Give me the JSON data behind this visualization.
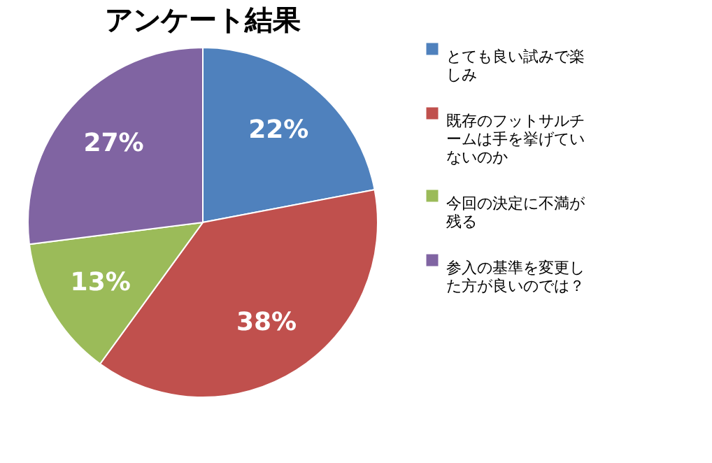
{
  "chart_data": {
    "type": "pie",
    "title": "アンケート結果",
    "categories": [
      "とても良い試みで楽しみ",
      "既存のフットサルチームは手を挙げていないのか",
      "今回の決定に不満が残る",
      "参入の基準を変更した方が良いのでは？"
    ],
    "values": [
      22,
      38,
      13,
      27
    ],
    "colors": [
      "#4f81bd",
      "#c0504d",
      "#9bbb59",
      "#8064a2"
    ],
    "value_labels": [
      "22%",
      "38%",
      "13%",
      "27%"
    ],
    "legend": "right"
  }
}
